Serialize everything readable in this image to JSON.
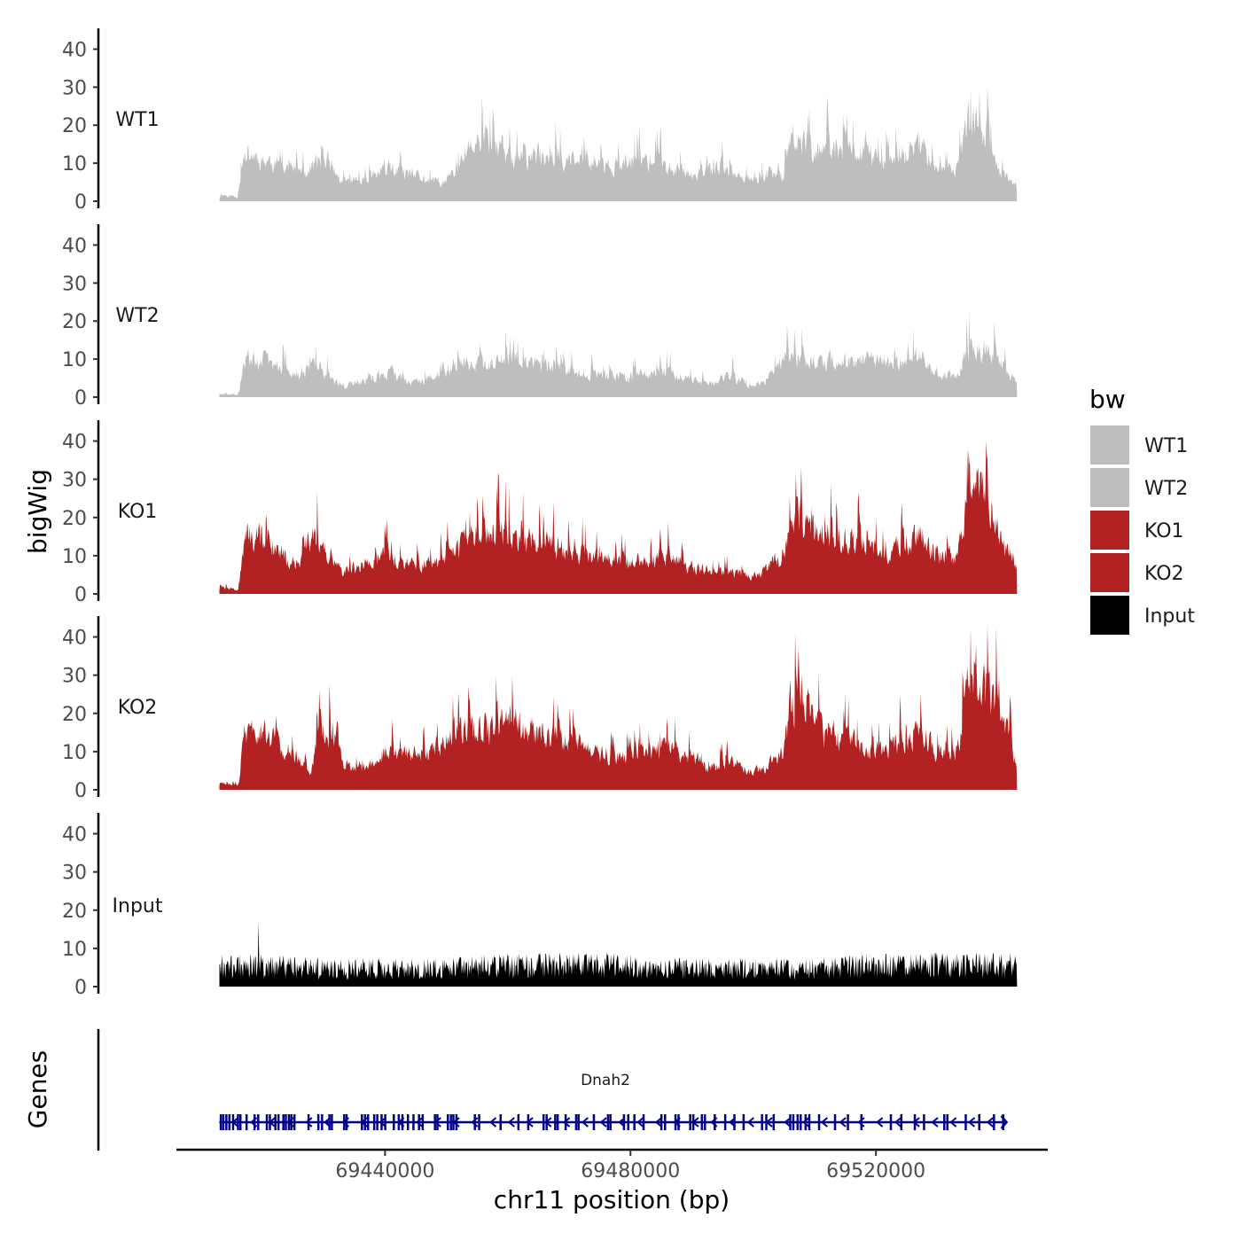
{
  "chart_data": {
    "type": "area",
    "ylabel": "bigWig",
    "genes_label": "Genes",
    "xlabel": "chr11 position (bp)",
    "xlim": [
      69406000,
      69548000
    ],
    "data_range": [
      69413000,
      69543000
    ],
    "ylim": [
      0,
      45
    ],
    "yticks": [
      0,
      10,
      20,
      30,
      40
    ],
    "xticks": [
      69440000,
      69480000,
      69520000
    ],
    "xtick_labels": [
      "69440000",
      "69480000",
      "69520000"
    ],
    "legend": {
      "title": "bw",
      "entries": [
        {
          "label": "WT1",
          "color": "#bebebe"
        },
        {
          "label": "WT2",
          "color": "#bebebe"
        },
        {
          "label": "KO1",
          "color": "#b22222"
        },
        {
          "label": "KO2",
          "color": "#b22222"
        },
        {
          "label": "Input",
          "color": "#000000"
        }
      ]
    },
    "series": [
      {
        "name": "WT1",
        "color": "#bebebe",
        "max": 30,
        "seed": 11,
        "profile": [
          [
            69413000,
            2
          ],
          [
            69416000,
            1
          ],
          [
            69417000,
            14
          ],
          [
            69423000,
            10
          ],
          [
            69427000,
            8
          ],
          [
            69430000,
            13
          ],
          [
            69433000,
            5
          ],
          [
            69437000,
            7
          ],
          [
            69441000,
            9
          ],
          [
            69445000,
            7
          ],
          [
            69449000,
            5
          ],
          [
            69452000,
            9
          ],
          [
            69453000,
            14
          ],
          [
            69457000,
            18
          ],
          [
            69460000,
            13
          ],
          [
            69463000,
            12
          ],
          [
            69467000,
            14
          ],
          [
            69471000,
            11
          ],
          [
            69475000,
            10
          ],
          [
            69478000,
            10
          ],
          [
            69482000,
            12
          ],
          [
            69485000,
            10
          ],
          [
            69489000,
            8
          ],
          [
            69492000,
            8
          ],
          [
            69495000,
            10
          ],
          [
            69498000,
            6
          ],
          [
            69501000,
            6
          ],
          [
            69503000,
            9
          ],
          [
            69505000,
            7
          ],
          [
            69506000,
            18
          ],
          [
            69510000,
            15
          ],
          [
            69514000,
            14
          ],
          [
            69518000,
            13
          ],
          [
            69522000,
            11
          ],
          [
            69525000,
            13
          ],
          [
            69527000,
            17
          ],
          [
            69530000,
            9
          ],
          [
            69533000,
            8
          ],
          [
            69535000,
            22
          ],
          [
            69538000,
            20
          ],
          [
            69540000,
            8
          ],
          [
            69543000,
            4
          ]
        ]
      },
      {
        "name": "WT2",
        "color": "#bebebe",
        "max": 23,
        "seed": 29,
        "profile": [
          [
            69413000,
            1
          ],
          [
            69416000,
            0.5
          ],
          [
            69417000,
            10
          ],
          [
            69420000,
            11
          ],
          [
            69423000,
            8
          ],
          [
            69426000,
            5
          ],
          [
            69428000,
            10
          ],
          [
            69431000,
            6
          ],
          [
            69433000,
            3
          ],
          [
            69437000,
            5
          ],
          [
            69441000,
            7
          ],
          [
            69444000,
            4
          ],
          [
            69448000,
            6
          ],
          [
            69453000,
            10
          ],
          [
            69457000,
            9
          ],
          [
            69460000,
            11
          ],
          [
            69463000,
            9
          ],
          [
            69467000,
            9
          ],
          [
            69471000,
            7
          ],
          [
            69474000,
            6
          ],
          [
            69478000,
            6
          ],
          [
            69482000,
            6
          ],
          [
            69486000,
            7
          ],
          [
            69490000,
            5
          ],
          [
            69493000,
            4
          ],
          [
            69496000,
            6
          ],
          [
            69500000,
            3
          ],
          [
            69503000,
            6
          ],
          [
            69506000,
            13
          ],
          [
            69509000,
            10
          ],
          [
            69513000,
            10
          ],
          [
            69517000,
            11
          ],
          [
            69520000,
            10
          ],
          [
            69524000,
            9
          ],
          [
            69527000,
            12
          ],
          [
            69530000,
            6
          ],
          [
            69533000,
            6
          ],
          [
            69535000,
            13
          ],
          [
            69538000,
            13
          ],
          [
            69541000,
            8
          ],
          [
            69543000,
            4
          ]
        ]
      },
      {
        "name": "KO1",
        "color": "#b22222",
        "max": 40,
        "seed": 47,
        "profile": [
          [
            69413000,
            2
          ],
          [
            69416000,
            1
          ],
          [
            69417000,
            16
          ],
          [
            69420000,
            17
          ],
          [
            69423000,
            11
          ],
          [
            69426000,
            9
          ],
          [
            69428000,
            18
          ],
          [
            69431000,
            12
          ],
          [
            69433000,
            6
          ],
          [
            69436000,
            8
          ],
          [
            69440000,
            11
          ],
          [
            69444000,
            9
          ],
          [
            69448000,
            8
          ],
          [
            69453000,
            15
          ],
          [
            69457000,
            18
          ],
          [
            69460000,
            17
          ],
          [
            69463000,
            15
          ],
          [
            69467000,
            14
          ],
          [
            69471000,
            11
          ],
          [
            69475000,
            10
          ],
          [
            69479000,
            9
          ],
          [
            69482000,
            9
          ],
          [
            69486000,
            11
          ],
          [
            69490000,
            7
          ],
          [
            69494000,
            6
          ],
          [
            69498000,
            6
          ],
          [
            69501000,
            5
          ],
          [
            69503000,
            9
          ],
          [
            69505000,
            9
          ],
          [
            69506000,
            22
          ],
          [
            69508000,
            21
          ],
          [
            69511000,
            17
          ],
          [
            69514000,
            17
          ],
          [
            69518000,
            14
          ],
          [
            69521000,
            11
          ],
          [
            69524000,
            13
          ],
          [
            69527000,
            17
          ],
          [
            69530000,
            11
          ],
          [
            69533000,
            10
          ],
          [
            69535000,
            28
          ],
          [
            69538000,
            30
          ],
          [
            69540000,
            16
          ],
          [
            69543000,
            8
          ]
        ]
      },
      {
        "name": "KO2",
        "color": "#b22222",
        "max": 43,
        "seed": 83,
        "profile": [
          [
            69413000,
            2
          ],
          [
            69416000,
            1
          ],
          [
            69417000,
            16
          ],
          [
            69420000,
            17
          ],
          [
            69423000,
            12
          ],
          [
            69426000,
            9
          ],
          [
            69428000,
            5
          ],
          [
            69429000,
            18
          ],
          [
            69432000,
            17
          ],
          [
            69433000,
            7
          ],
          [
            69437000,
            6
          ],
          [
            69440000,
            11
          ],
          [
            69444000,
            10
          ],
          [
            69447000,
            10
          ],
          [
            69450000,
            14
          ],
          [
            69453000,
            18
          ],
          [
            69457000,
            17
          ],
          [
            69460000,
            20
          ],
          [
            69463000,
            17
          ],
          [
            69467000,
            15
          ],
          [
            69471000,
            13
          ],
          [
            69475000,
            10
          ],
          [
            69479000,
            9
          ],
          [
            69483000,
            11
          ],
          [
            69486000,
            12
          ],
          [
            69490000,
            9
          ],
          [
            69493000,
            6
          ],
          [
            69496000,
            8
          ],
          [
            69500000,
            5
          ],
          [
            69503000,
            8
          ],
          [
            69505000,
            11
          ],
          [
            69506000,
            25
          ],
          [
            69508000,
            27
          ],
          [
            69511000,
            17
          ],
          [
            69515000,
            14
          ],
          [
            69518000,
            12
          ],
          [
            69522000,
            11
          ],
          [
            69524000,
            14
          ],
          [
            69527000,
            17
          ],
          [
            69530000,
            10
          ],
          [
            69533000,
            10
          ],
          [
            69535000,
            30
          ],
          [
            69537000,
            34
          ],
          [
            69539000,
            26
          ],
          [
            69541000,
            18
          ],
          [
            69543000,
            7
          ]
        ]
      },
      {
        "name": "Input",
        "color": "#000000",
        "max": 17,
        "seed": 131,
        "profile": [
          [
            69413000,
            6
          ],
          [
            69420000,
            6
          ],
          [
            69430000,
            5
          ],
          [
            69440000,
            5
          ],
          [
            69450000,
            5
          ],
          [
            69460000,
            6
          ],
          [
            69470000,
            6
          ],
          [
            69480000,
            6
          ],
          [
            69490000,
            5
          ],
          [
            69500000,
            5
          ],
          [
            69510000,
            5
          ],
          [
            69520000,
            6
          ],
          [
            69530000,
            6
          ],
          [
            69543000,
            6
          ]
        ]
      }
    ],
    "gene": {
      "name": "Dnah2",
      "color": "#00008b",
      "start": 69413000,
      "end": 69541000,
      "strand": "-",
      "exons": [
        69413200,
        69413600,
        69414100,
        69414600,
        69415200,
        69416000,
        69416400,
        69417400,
        69418700,
        69419300,
        69420700,
        69421200,
        69422100,
        69422600,
        69423400,
        69423800,
        69424300,
        69424700,
        69425200,
        69427500,
        69429100,
        69429700,
        69430900,
        69431300,
        69433300,
        69433700,
        69436200,
        69436700,
        69437200,
        69438200,
        69438700,
        69439400,
        69440000,
        69441400,
        69442200,
        69442800,
        69443700,
        69444600,
        69445500,
        69446100,
        69448100,
        69448500,
        69450200,
        69450700,
        69451100,
        69451600,
        69454600,
        69455300,
        69458800,
        69461700,
        69463300,
        69465800,
        69466300,
        69467700,
        69468100,
        69469400,
        69471100,
        69471500,
        69474000,
        69476300,
        69476700,
        69478900,
        69479600,
        69480600,
        69482100,
        69485000,
        69485600,
        69487300,
        69487800,
        69489700,
        69490200,
        69491600,
        69492100,
        69493700,
        69495400,
        69496900,
        69498400,
        69501400,
        69502100,
        69503300,
        69506000,
        69506500,
        69507200,
        69507700,
        69508500,
        69509100,
        69510700,
        69513300,
        69515400,
        69517600,
        69522400,
        69524100,
        69526300,
        69527800,
        69531100,
        69531600,
        69534600,
        69536800,
        69539200,
        69540700
      ]
    }
  }
}
